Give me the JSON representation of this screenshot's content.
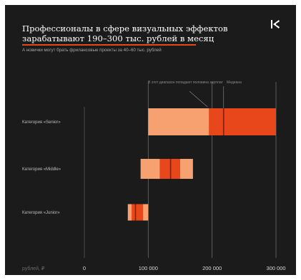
{
  "header": {
    "title_line1": "Профессионалы в сфере визуальных эффектов",
    "title_line2": "зарабатывают 190–300 тыс. рублей в месяц",
    "subtitle": "А новички могут брать фрилансовые проекты за 40–60 тыс. рублей",
    "logo_icon": "brand-logo-icon"
  },
  "colors": {
    "background": "#1b1b1b",
    "range_light": "#f7a070",
    "range_dark": "#e8471c",
    "median": "#8a1e08",
    "accent_underline": "#e8471c"
  },
  "chart_data": {
    "type": "bar",
    "orientation": "horizontal",
    "title": "Профессионалы в сфере визуальных эффектов зарабатывают 190–300 тыс. рублей в месяц",
    "subtitle": "А новички могут брать фрилансовые проекты за 40–60 тыс. рублей",
    "xlabel": "рублей, ₽",
    "ylabel": "",
    "xlim": [
      0,
      300000
    ],
    "xticks": [
      0,
      100000,
      200000,
      300000
    ],
    "xtick_labels": [
      "0",
      "100 000",
      "200 000",
      "300 000"
    ],
    "grid": "vertical lines at 100 000 and 200 000",
    "categories": [
      "Категория «Senior»",
      "Категория «Middle»",
      "Категория «Junior»"
    ],
    "series": [
      {
        "values": [
          {
            "min": 100000,
            "max": 300000,
            "dark_from": 195000,
            "median": 218000
          },
          {
            "min": 88000,
            "max": 170000,
            "dark_from": 118000,
            "dark_to": 150000,
            "median": 135000
          },
          {
            "min": 68000,
            "max": 100000,
            "dark_from": 74000,
            "dark_to": 92000,
            "median": 80000
          }
        ]
      }
    ],
    "annotations": [
      {
        "text": "В этот диапазон попадают половина зарплат",
        "x": 195000
      },
      {
        "text": "Медиана",
        "x": 218000
      }
    ]
  }
}
